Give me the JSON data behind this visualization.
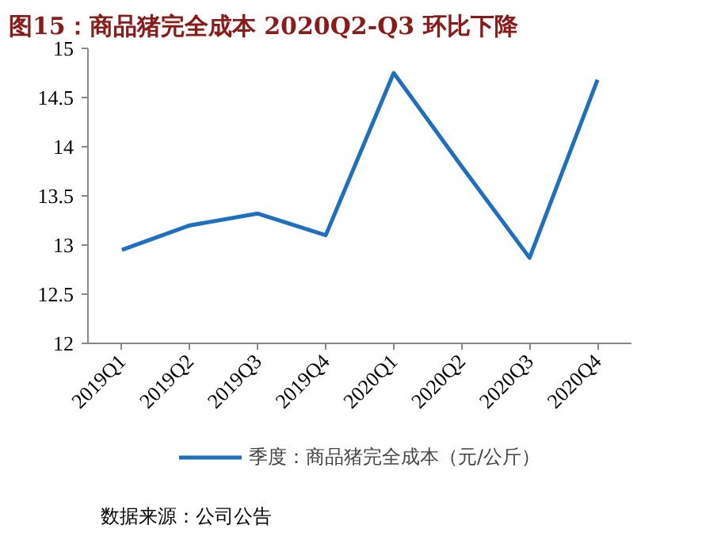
{
  "chart_data": {
    "type": "line",
    "title": "图15：商品猪完全成本 2020Q2-Q3 环比下降",
    "categories": [
      "2019Q1",
      "2019Q2",
      "2019Q3",
      "2019Q4",
      "2020Q1",
      "2020Q2",
      "2020Q3",
      "2020Q4"
    ],
    "series": [
      {
        "name": "季度：商品猪完全成本（元/公斤）",
        "color": "#1f6fc0",
        "values": [
          12.95,
          13.2,
          13.32,
          13.1,
          14.75,
          13.8,
          12.87,
          14.68
        ]
      }
    ],
    "ylim": [
      12,
      15
    ],
    "yticks": [
      12,
      12.5,
      13,
      13.5,
      14,
      14.5,
      15
    ],
    "grid": false,
    "legend": "bottom",
    "marker": "none",
    "line_style": "solid",
    "annotations": [
      "数据来源：公司公告"
    ]
  }
}
